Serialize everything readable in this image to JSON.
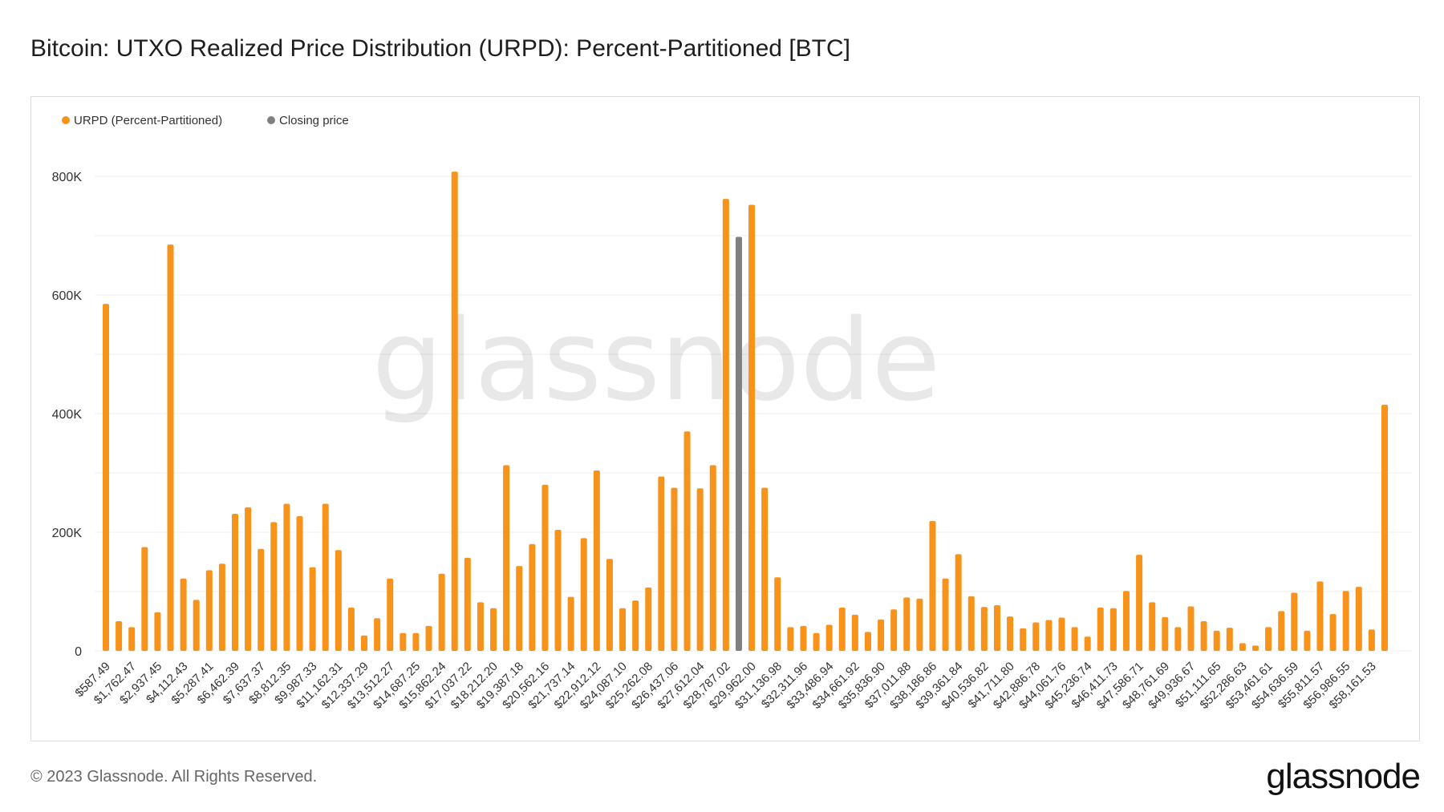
{
  "title": "Bitcoin: UTXO Realized Price Distribution (URPD): Percent-Partitioned [BTC]",
  "footer": {
    "copyright": "© 2023 Glassnode. All Rights Reserved.",
    "brand": "glassnode"
  },
  "watermark": "glassnode",
  "colors": {
    "urpd": "#f7931a",
    "closing": "#808080",
    "grid": "#efefef"
  },
  "chart_data": {
    "type": "bar",
    "title": "Bitcoin: UTXO Realized Price Distribution (URPD): Percent-Partitioned [BTC]",
    "xlabel": "",
    "ylabel": "",
    "ylim": [
      0,
      800000
    ],
    "yticks": [
      {
        "value": 0,
        "label": "0"
      },
      {
        "value": 200000,
        "label": "200K"
      },
      {
        "value": 400000,
        "label": "400K"
      },
      {
        "value": 600000,
        "label": "600K"
      },
      {
        "value": 800000,
        "label": "800K"
      }
    ],
    "legend": [
      {
        "name": "URPD (Percent-Partitioned)",
        "color": "#f7931a"
      },
      {
        "name": "Closing price",
        "color": "#808080"
      }
    ],
    "legend_position": "top-left",
    "tick_labels": [
      "$587.49",
      "$1,762.47",
      "$2,937.45",
      "$4,112.43",
      "$5,287.41",
      "$6,462.39",
      "$7,637.37",
      "$8,812.35",
      "$9,987.33",
      "$11,162.31",
      "$12,337.29",
      "$13,512.27",
      "$14,687.25",
      "$15,862.24",
      "$17,037.22",
      "$18,212.20",
      "$19,387.18",
      "$20,562.16",
      "$21,737.14",
      "$22,912.12",
      "$24,087.10",
      "$25,262.08",
      "$26,437.06",
      "$27,612.04",
      "$28,787.02",
      "$29,962.00",
      "$31,136.98",
      "$32,311.96",
      "$33,486.94",
      "$34,661.92",
      "$35,836.90",
      "$37,011.88",
      "$38,186.86",
      "$39,361.84",
      "$40,536.82",
      "$41,711.80",
      "$42,886.78",
      "$44,061.76",
      "$45,236.74",
      "$46,411.73",
      "$47,586.71",
      "$48,761.69",
      "$49,936.67",
      "$51,111.65",
      "$52,286.63",
      "$53,461.61",
      "$54,636.59",
      "$55,811.57",
      "$56,986.55",
      "$58,161.53"
    ],
    "closing_index": 49,
    "values": [
      585000,
      50000,
      40000,
      175000,
      65000,
      685000,
      122000,
      86000,
      136000,
      147000,
      231000,
      242000,
      172000,
      217000,
      248000,
      227000,
      141000,
      248000,
      170000,
      73000,
      26000,
      55000,
      122000,
      30000,
      30000,
      42000,
      130000,
      808000,
      157000,
      82000,
      72000,
      313000,
      143000,
      180000,
      280000,
      204000,
      91000,
      190000,
      304000,
      155000,
      72000,
      85000,
      107000,
      294000,
      275000,
      370000,
      274000,
      313000,
      762000,
      698000,
      752000,
      275000,
      124000,
      40000,
      42000,
      30000,
      44000,
      73000,
      61000,
      32000,
      53000,
      70000,
      90000,
      88000,
      219000,
      122000,
      163000,
      92000,
      74000,
      77000,
      58000,
      38000,
      48000,
      52000,
      56000,
      40000,
      24000,
      73000,
      72000,
      101000,
      162000,
      82000,
      57000,
      40000,
      75000,
      50000,
      34000,
      39000,
      13000,
      9000,
      40000,
      67000,
      98000,
      34000,
      117000,
      62000,
      101000,
      108000,
      36000,
      415000
    ]
  }
}
